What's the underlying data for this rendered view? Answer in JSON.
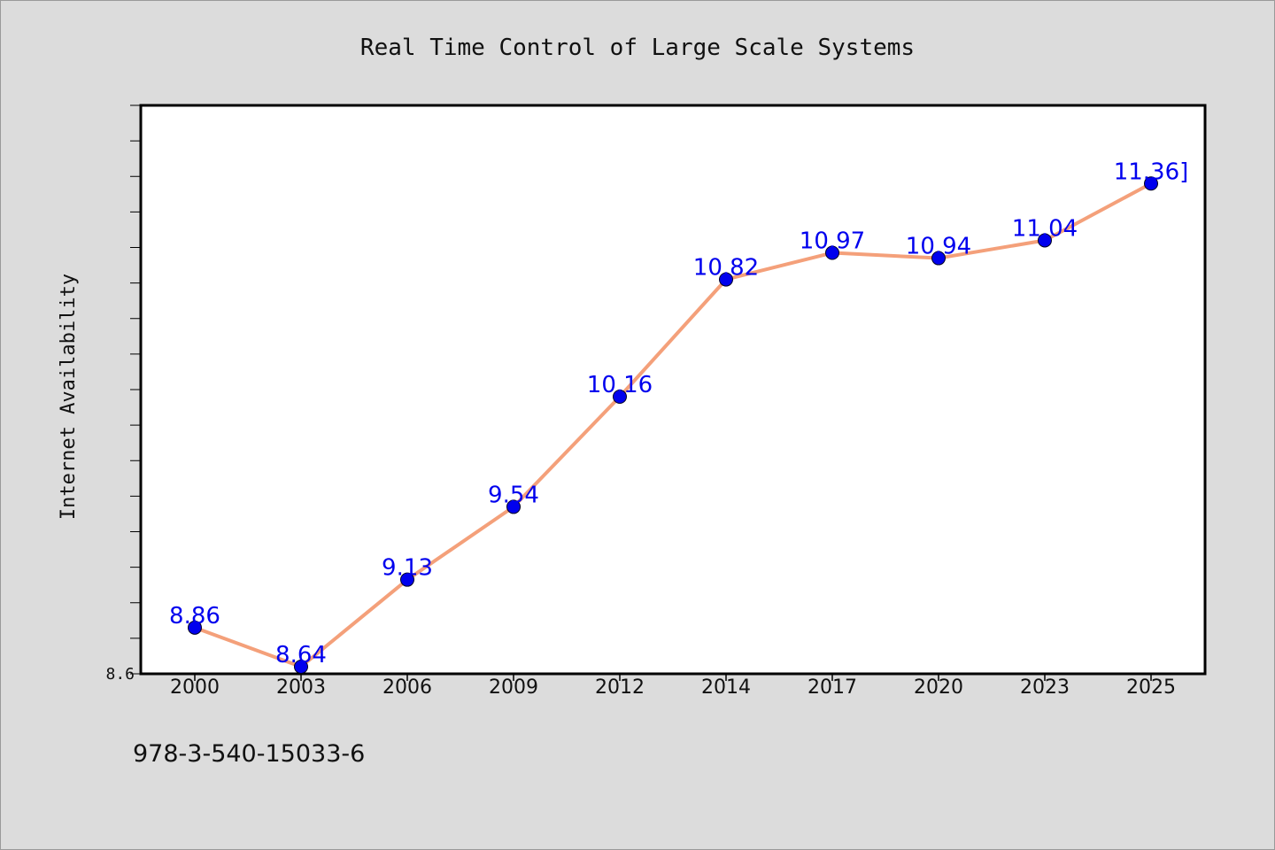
{
  "chart_data": {
    "type": "line",
    "title": "Real Time Control of Large Scale Systems",
    "xlabel": "",
    "ylabel": "Internet Availability",
    "categories": [
      "2000",
      "2003",
      "2006",
      "2009",
      "2012",
      "2014",
      "2017",
      "2020",
      "2023",
      "2025"
    ],
    "series": [
      {
        "values": [
          8.86,
          8.64,
          9.13,
          9.54,
          10.16,
          10.82,
          10.97,
          10.94,
          11.04,
          11.36
        ]
      }
    ],
    "data_labels": [
      "8.86",
      "8.64",
      "9.13",
      "9.54",
      "10.16",
      "10.82",
      "10.97",
      "10.94",
      "11.04",
      "11.36]"
    ],
    "ylim": [
      8.6,
      11.8
    ],
    "yticks_labeled": [
      "8.6"
    ],
    "grid": false,
    "legend": "none",
    "colors": {
      "line": "#f4a07a",
      "marker": "#0000ee",
      "labels": "#0000ee",
      "plot_background": "#ffffff",
      "page_background": "#dcdcdc"
    }
  },
  "footer": {
    "isbn": "978-3-540-15033-6"
  }
}
